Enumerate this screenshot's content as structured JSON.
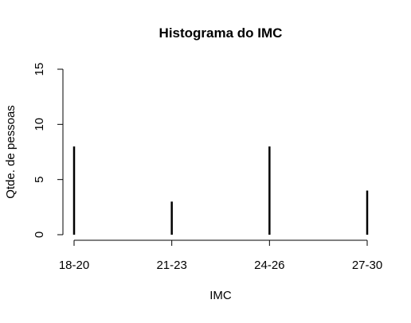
{
  "chart_data": {
    "type": "bar",
    "title": "Histograma do IMC",
    "xlabel": "IMC",
    "ylabel": "Qtde. de pessoas",
    "categories": [
      "18-20",
      "21-23",
      "24-26",
      "27-30"
    ],
    "values": [
      8,
      3,
      8,
      4
    ],
    "ylim": [
      0,
      15
    ],
    "yticks": [
      "0",
      "5",
      "10",
      "15"
    ],
    "grid": false,
    "legend": "none",
    "colors": {
      "bars": "#000000",
      "axes": "#000000",
      "background": "#ffffff"
    }
  }
}
